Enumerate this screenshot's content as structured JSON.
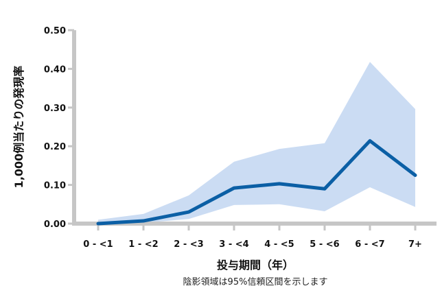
{
  "chart_data": {
    "type": "line",
    "title": "",
    "xlabel": "投与期間（年）",
    "ylabel": "1,000例当たりの発現率",
    "note": "陰影領域は95%信頼区間を示します",
    "categories": [
      "0 - <1",
      "1 - <2",
      "2 - <3",
      "3 - <4",
      "4 - <5",
      "5 - <6",
      "6 - <7",
      "7+"
    ],
    "ylim": [
      0,
      0.5
    ],
    "yticks": [
      "0.00",
      "0.10",
      "0.20",
      "0.30",
      "0.40",
      "0.50"
    ],
    "grid": false,
    "series": [
      {
        "values": [
          0.0,
          0.007,
          0.03,
          0.092,
          0.103,
          0.09,
          0.214,
          0.125
        ],
        "ci_lower": [
          0.0,
          0.002,
          0.012,
          0.048,
          0.05,
          0.032,
          0.094,
          0.043
        ],
        "ci_upper": [
          0.01,
          0.025,
          0.073,
          0.16,
          0.193,
          0.208,
          0.418,
          0.296
        ]
      }
    ],
    "colors": {
      "line": "#0b5fa5",
      "band": "#cbdcf3",
      "axis": "#c6c6c6"
    }
  }
}
